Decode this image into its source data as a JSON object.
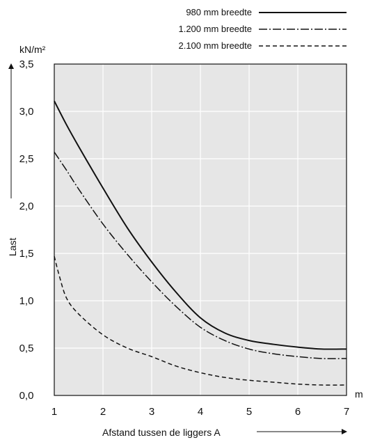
{
  "chart_data": {
    "type": "line",
    "x_unit": "m",
    "y_unit": "kN/m²",
    "xlabel": "Afstand tussen de liggers A",
    "ylabel": "Last",
    "xlim": [
      1,
      7
    ],
    "ylim": [
      0,
      3.5
    ],
    "x_ticks": [
      "1",
      "2",
      "3",
      "4",
      "5",
      "6",
      "7"
    ],
    "y_ticks": [
      "0,0",
      "0,5",
      "1,0",
      "1,5",
      "2,0",
      "2,5",
      "3,0",
      "3,5"
    ],
    "grid": true,
    "legend_position": "top-right",
    "plot_background": "#e6e6e6",
    "series": [
      {
        "name": "980 mm breedte",
        "style": "solid",
        "x": [
          1.0,
          1.25,
          1.5,
          2.0,
          2.5,
          3.0,
          3.5,
          4.0,
          4.5,
          5.0,
          5.5,
          6.0,
          6.5,
          7.0
        ],
        "y": [
          3.11,
          2.86,
          2.63,
          2.19,
          1.77,
          1.41,
          1.09,
          0.82,
          0.66,
          0.58,
          0.54,
          0.51,
          0.49,
          0.49
        ]
      },
      {
        "name": "1.200 mm breedte",
        "style": "dashdot",
        "x": [
          1.0,
          1.25,
          1.5,
          2.0,
          2.5,
          3.0,
          3.5,
          4.0,
          4.5,
          5.0,
          5.5,
          6.0,
          6.5,
          7.0
        ],
        "y": [
          2.57,
          2.38,
          2.18,
          1.81,
          1.49,
          1.2,
          0.94,
          0.72,
          0.58,
          0.49,
          0.44,
          0.41,
          0.39,
          0.39
        ]
      },
      {
        "name": "2.100 mm breedte",
        "style": "dashed",
        "x": [
          1.0,
          1.1,
          1.25,
          1.5,
          2.0,
          2.5,
          3.0,
          3.5,
          4.0,
          4.5,
          5.0,
          5.5,
          6.0,
          6.5,
          7.0
        ],
        "y": [
          1.47,
          1.27,
          1.03,
          0.86,
          0.64,
          0.5,
          0.41,
          0.31,
          0.24,
          0.19,
          0.16,
          0.14,
          0.12,
          0.11,
          0.11
        ]
      }
    ]
  }
}
